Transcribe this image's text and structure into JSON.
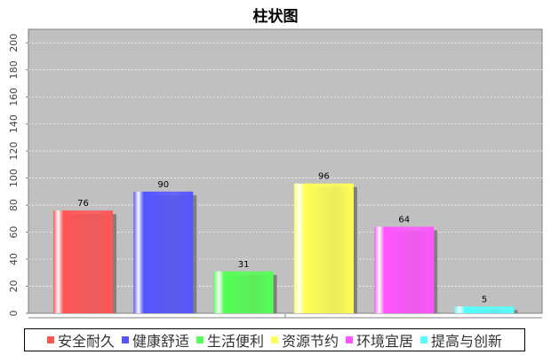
{
  "chart_data": {
    "type": "bar",
    "title": "柱状图",
    "xlabel": "",
    "ylabel": "",
    "ylim": [
      0,
      210
    ],
    "yticks": [
      0,
      20,
      40,
      60,
      80,
      100,
      120,
      140,
      160,
      180,
      200
    ],
    "grid": true,
    "legend_position": "bottom",
    "series": [
      {
        "name": "安全耐久",
        "value": 76,
        "color": "#ff5555"
      },
      {
        "name": "健康舒适",
        "value": 90,
        "color": "#5555ff"
      },
      {
        "name": "生活便利",
        "value": 31,
        "color": "#55ff55"
      },
      {
        "name": "资源节约",
        "value": 96,
        "color": "#ffff55"
      },
      {
        "name": "环境宜居",
        "value": 64,
        "color": "#ff55ff"
      },
      {
        "name": "提高与创新",
        "value": 5,
        "color": "#55ffff"
      }
    ],
    "plot_background": "#c0c0c0"
  }
}
